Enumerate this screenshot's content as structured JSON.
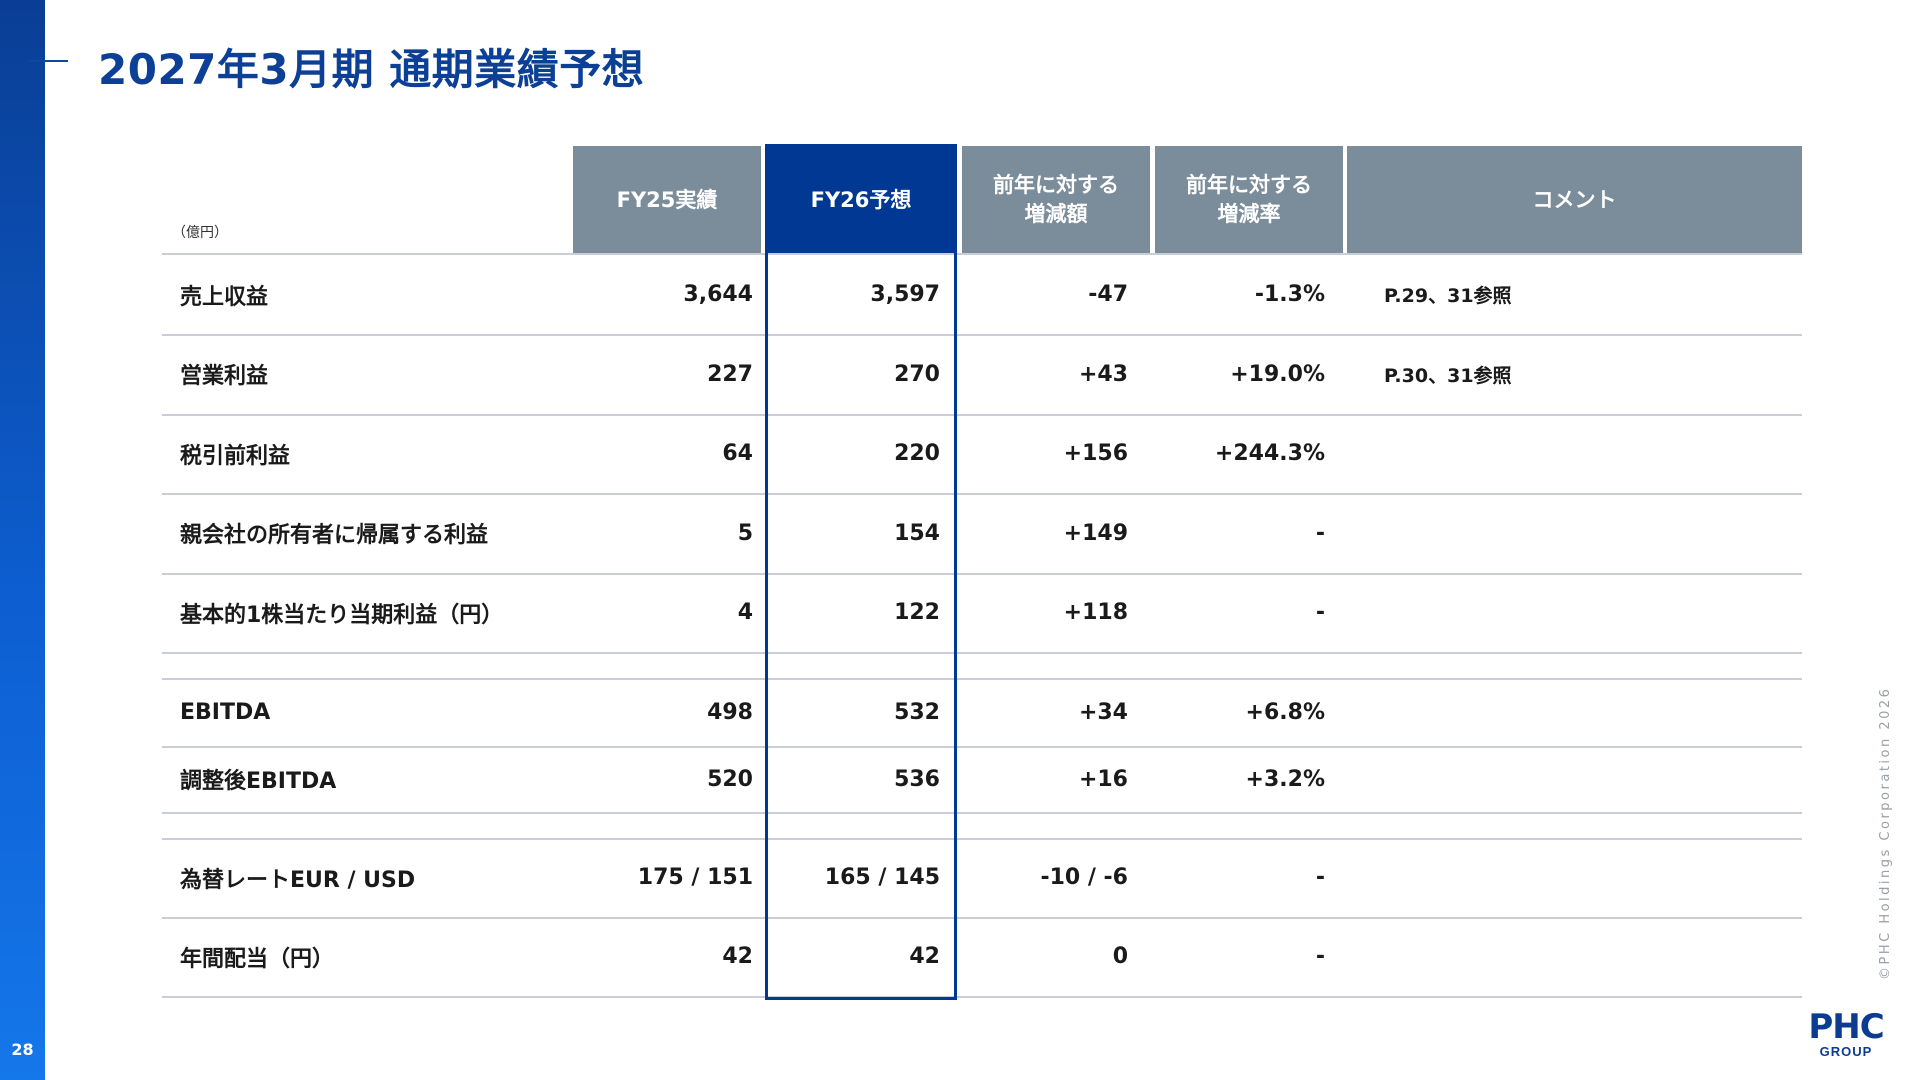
{
  "page": {
    "title": "2027年3月期 通期業績予想",
    "page_number": "28",
    "copyright": "©PHC Holdings Corporation 2026"
  },
  "logo": {
    "main": "PHC",
    "sub": "GROUP"
  },
  "table": {
    "unit": "（億円）",
    "headers": {
      "fy25": "FY25実績",
      "fy26": "FY26予想",
      "diff": "前年に対する\n増減額",
      "rate": "前年に対する\n増減率",
      "comment": "コメント"
    },
    "rows": [
      {
        "label": "売上収益",
        "fy25": "3,644",
        "fy26": "3,597",
        "diff": "-47",
        "rate": "-1.3%",
        "comment": "P.29、31参照"
      },
      {
        "label": "営業利益",
        "fy25": "227",
        "fy26": "270",
        "diff": "+43",
        "rate": "+19.0%",
        "comment": "P.30、31参照"
      },
      {
        "label": "税引前利益",
        "fy25": "64",
        "fy26": "220",
        "diff": "+156",
        "rate": "+244.3%",
        "comment": ""
      },
      {
        "label": "親会社の所有者に帰属する利益",
        "fy25": "5",
        "fy26": "154",
        "diff": "+149",
        "rate": "-",
        "comment": ""
      },
      {
        "label": "基本的1株当たり当期利益（円）",
        "fy25": "4",
        "fy26": "122",
        "diff": "+118",
        "rate": "-",
        "comment": ""
      },
      {
        "label": "",
        "fy25": "",
        "fy26": "",
        "diff": "",
        "rate": "",
        "comment": ""
      },
      {
        "label": "EBITDA",
        "fy25": "498",
        "fy26": "532",
        "diff": "+34",
        "rate": "+6.8%",
        "comment": ""
      },
      {
        "label": "調整後EBITDA",
        "fy25": "520",
        "fy26": "536",
        "diff": "+16",
        "rate": "+3.2%",
        "comment": ""
      },
      {
        "label": "",
        "fy25": "",
        "fy26": "",
        "diff": "",
        "rate": "",
        "comment": ""
      },
      {
        "label": "為替レートEUR / USD",
        "fy25": "175 / 151",
        "fy26": "165 / 145",
        "diff": "-10 / -6",
        "rate": "-",
        "comment": ""
      },
      {
        "label": "年間配当（円）",
        "fy25": "42",
        "fy26": "42",
        "diff": "0",
        "rate": "-",
        "comment": ""
      }
    ]
  }
}
